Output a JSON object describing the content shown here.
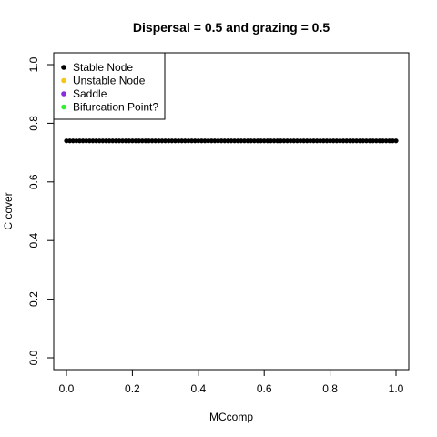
{
  "chart_data": {
    "type": "scatter",
    "title": "Dispersal =  0.5 and grazing = 0.5",
    "xlabel": "MCcomp",
    "ylabel": "C cover",
    "xlim": [
      0,
      1
    ],
    "ylim": [
      0,
      1
    ],
    "x_ticks": [
      "0.0",
      "0.2",
      "0.4",
      "0.6",
      "0.8",
      "1.0"
    ],
    "y_ticks": [
      "0.0",
      "0.2",
      "0.4",
      "0.6",
      "0.8",
      "1.0"
    ],
    "grid": false,
    "legend_position": "top-left",
    "legend": [
      {
        "label": "Stable Node",
        "color": "#000000"
      },
      {
        "label": "Unstable Node",
        "color": "#f5c518"
      },
      {
        "label": "Saddle",
        "color": "#8a2be2"
      },
      {
        "label": "Bifurcation Point?",
        "color": "#33ee33"
      }
    ],
    "series": [
      {
        "name": "Stable Node",
        "color": "#000000",
        "x_start": 0,
        "x_end": 1,
        "x_step": 0.01,
        "y": 0.74
      }
    ]
  }
}
